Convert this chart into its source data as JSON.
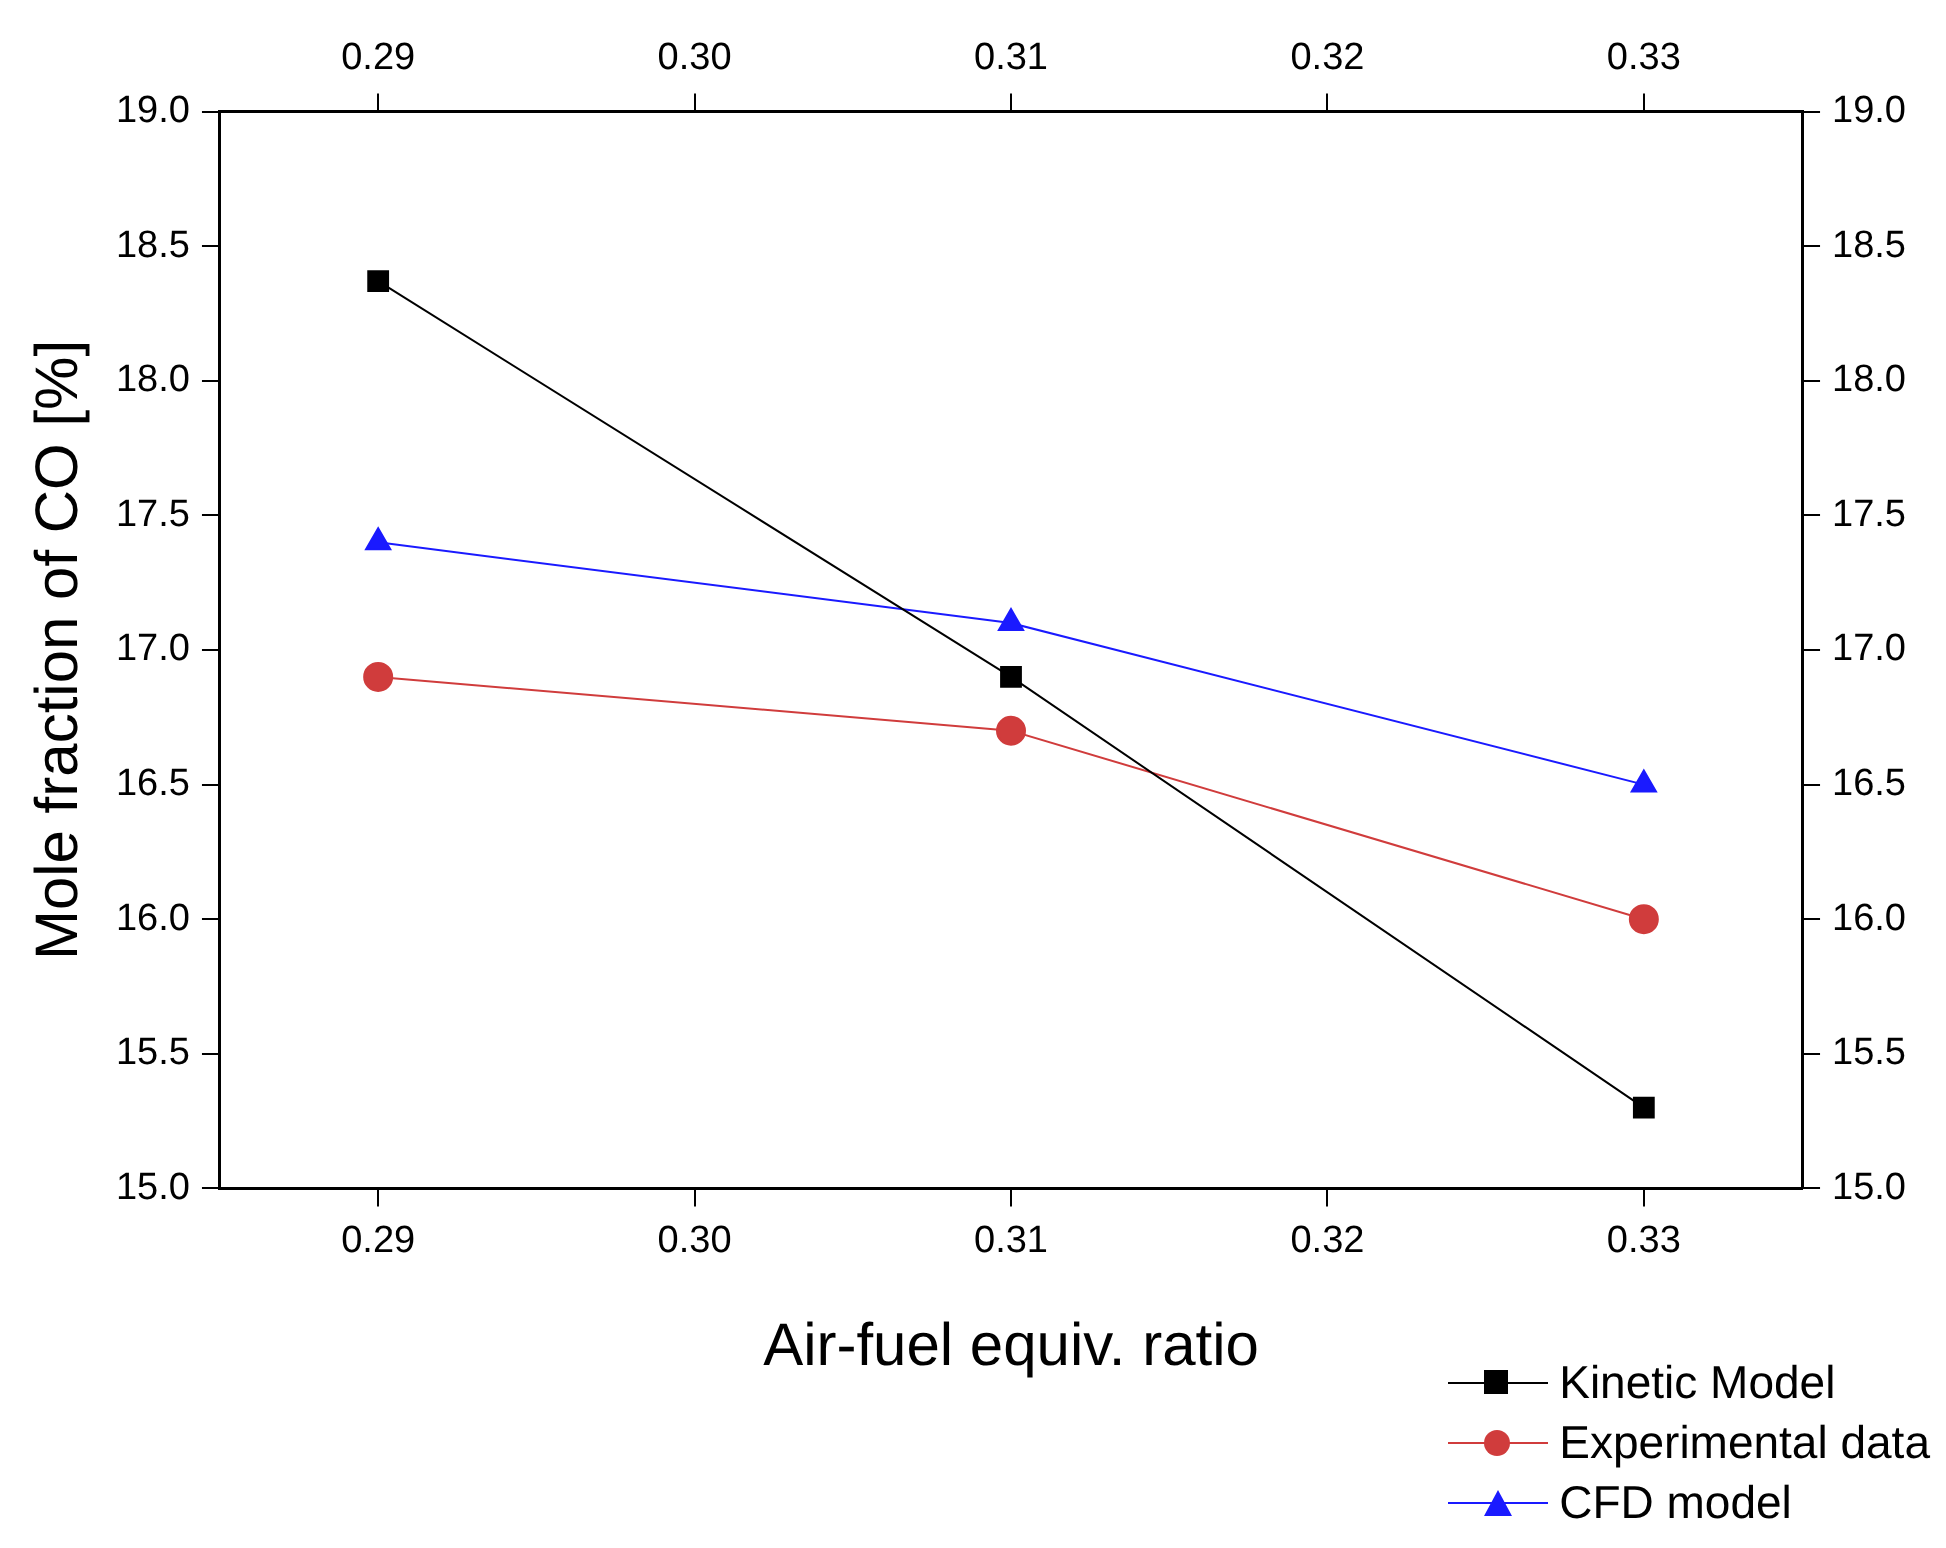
{
  "chart_data": {
    "type": "line",
    "xlabel": "Air-fuel equiv. ratio",
    "ylabel": "Mole fraction of CO [%]",
    "x": [
      0.29,
      0.31,
      0.33
    ],
    "series": [
      {
        "name": "Kinetic Model",
        "color": "#000000",
        "marker": "square",
        "values": [
          18.37,
          16.9,
          15.3
        ]
      },
      {
        "name": "Experimental data",
        "color": "#d03c3c",
        "marker": "circle",
        "values": [
          16.9,
          16.7,
          16.0
        ]
      },
      {
        "name": "CFD model",
        "color": "#1a1aff",
        "marker": "triangle",
        "values": [
          17.4,
          17.1,
          16.5
        ]
      }
    ],
    "xlim": [
      0.285,
      0.335
    ],
    "xticks": [
      0.29,
      {
        "value": 0.3,
        "label": "0.30"
      },
      0.31,
      {
        "value": 0.32,
        "label": "0.32"
      },
      0.33
    ],
    "x2lim": [
      0.285,
      0.335
    ],
    "x2ticks": [
      0.29,
      {
        "value": 0.3,
        "label": "0.30"
      },
      0.31,
      {
        "value": 0.32,
        "label": "0.32"
      },
      0.33
    ],
    "ylim": [
      15,
      19
    ],
    "yticks": [
      {
        "value": 15,
        "label": "15.0"
      },
      15.5,
      {
        "value": 16,
        "label": "16.0"
      },
      16.5,
      {
        "value": 17,
        "label": "17.0"
      },
      17.5,
      {
        "value": 18,
        "label": "18.0"
      },
      18.5,
      {
        "value": 19,
        "label": "19.0"
      }
    ],
    "y2lim": [
      15,
      19
    ],
    "y2ticks": [
      {
        "value": 15,
        "label": "15.0"
      },
      15.5,
      {
        "value": 16,
        "label": "16.0"
      },
      16.5,
      {
        "value": 17,
        "label": "17.0"
      },
      17.5,
      {
        "value": 18,
        "label": "18.0"
      },
      18.5,
      {
        "value": 19,
        "label": "19.0"
      }
    ],
    "grid": false,
    "legend": "bottom right",
    "line_style": "solid"
  }
}
